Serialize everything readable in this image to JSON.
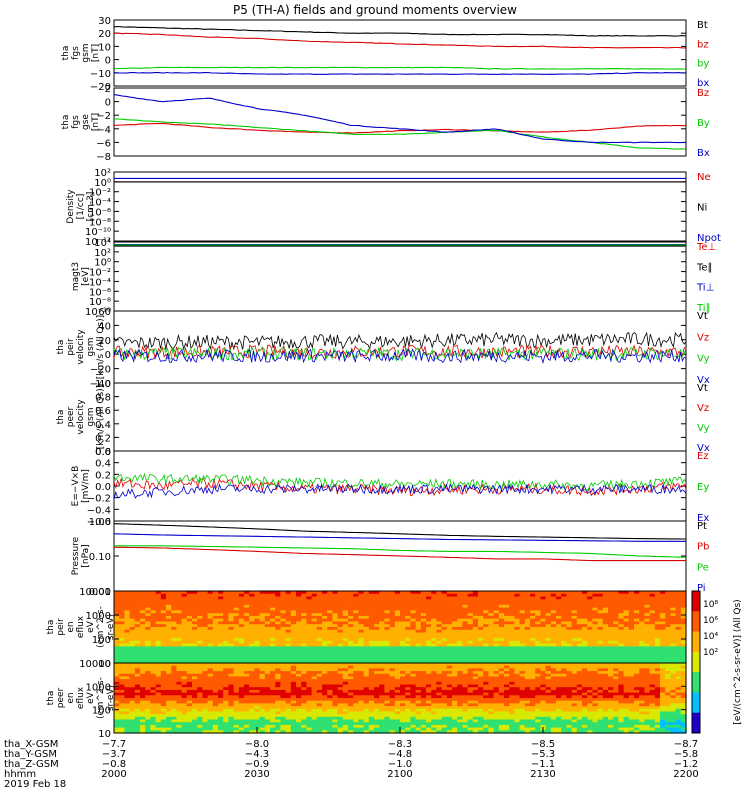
{
  "title": "P5 (TH-A) fields and ground moments overview",
  "chart_data": [
    {
      "type": "line",
      "panel": "fgs-gsm",
      "ylabel": [
        "tha",
        "fgs",
        "gsm",
        "[nT]"
      ],
      "ylim": [
        -20,
        30
      ],
      "yticks": [
        "30",
        "20",
        "10",
        "0",
        "−10",
        "−20"
      ],
      "series": [
        {
          "name": "Bt",
          "color": "#000000",
          "y": [
            25,
            24,
            23,
            22,
            21,
            20,
            20,
            19,
            19,
            19,
            18,
            18,
            18
          ]
        },
        {
          "name": "bz",
          "color": "#dd0000",
          "y": [
            20,
            19,
            17,
            16,
            14,
            13,
            12,
            11,
            10,
            10,
            9,
            9,
            9
          ]
        },
        {
          "name": "by",
          "color": "#00cc00",
          "y": [
            -7,
            -6,
            -6,
            -6,
            -6,
            -6,
            -6,
            -6,
            -7,
            -7,
            -7,
            -7,
            -7
          ]
        },
        {
          "name": "bx",
          "color": "#0000cc",
          "y": [
            -10,
            -10,
            -10,
            -11,
            -11,
            -11,
            -11,
            -11,
            -11,
            -11,
            -11,
            -10,
            -10
          ]
        }
      ]
    },
    {
      "type": "line",
      "panel": "fgs-gse",
      "ylabel": [
        "tha",
        "fgs",
        "gse",
        "[nT]"
      ],
      "ylim": [
        -8,
        2
      ],
      "yticks": [
        "2",
        "0",
        "−2",
        "−4",
        "−6",
        "−8"
      ],
      "series": [
        {
          "name": "Bz",
          "color": "#dd0000",
          "y": [
            -3.5,
            -3.2,
            -3.8,
            -4.2,
            -4.5,
            -4.6,
            -4.3,
            -4.1,
            -4.3,
            -4.5,
            -4.2,
            -3.6,
            -3.5
          ]
        },
        {
          "name": "By",
          "color": "#00cc00",
          "y": [
            -2.5,
            -3,
            -3.3,
            -3.8,
            -4.3,
            -4.8,
            -4.8,
            -4.5,
            -4.2,
            -5.2,
            -6,
            -6.8,
            -7
          ]
        },
        {
          "name": "Bx",
          "color": "#0000cc",
          "y": [
            1,
            0,
            0.5,
            -1,
            -2,
            -3.5,
            -4,
            -4.5,
            -4,
            -5.5,
            -6,
            -6,
            -6
          ]
        }
      ]
    },
    {
      "type": "line",
      "panel": "density",
      "ylabel": [
        "Density",
        "[1/cc]",
        "[cm-3]"
      ],
      "ylim": [
        1e-12,
        100
      ],
      "scale": "log",
      "yticks": [
        "10²",
        "10⁰",
        "10⁻²",
        "10⁻⁴",
        "10⁻⁶",
        "10⁻⁸",
        "10⁻¹⁰",
        "10⁻¹²"
      ],
      "series": [
        {
          "name": "Ne",
          "color": "#dd0000",
          "y": [
            1,
            1,
            1,
            1,
            1,
            1,
            1,
            1,
            1,
            1,
            1,
            1,
            1
          ]
        },
        {
          "name": "Ni",
          "color": "#000000",
          "y": [
            1,
            1,
            1,
            1,
            1,
            1,
            1,
            1,
            1,
            1,
            1,
            1,
            1
          ]
        },
        {
          "name": "Npot",
          "color": "#0000cc",
          "y": [
            5,
            5,
            5,
            5,
            5,
            5,
            5,
            5,
            5,
            5,
            5,
            5,
            5
          ]
        }
      ]
    },
    {
      "type": "line",
      "panel": "temperature",
      "ylabel": [
        "magt3",
        "[eV]"
      ],
      "ylim": [
        1e-10,
        10000
      ],
      "scale": "log",
      "yticks": [
        "10⁴",
        "10²",
        "10⁰",
        "10⁻²",
        "10⁻⁴",
        "10⁻⁶",
        "10⁻⁸",
        "10⁻¹⁰"
      ],
      "series": [
        {
          "name": "Te⊥",
          "color": "#dd0000",
          "y": [
            2000,
            2000,
            2000,
            2000,
            2000,
            2000,
            2000,
            2000,
            2000,
            2000,
            2000,
            2000,
            2000
          ]
        },
        {
          "name": "Te∥",
          "color": "#000000",
          "y": [
            1500,
            1500,
            1500,
            1500,
            1500,
            1500,
            1500,
            1500,
            1500,
            1500,
            1500,
            1500,
            1500
          ]
        },
        {
          "name": "Ti⊥",
          "color": "#0000cc",
          "y": [
            3000,
            3000,
            3000,
            3000,
            3000,
            3000,
            3000,
            3000,
            3000,
            3000,
            3000,
            3000,
            3000
          ]
        },
        {
          "name": "Ti∥",
          "color": "#00cc00",
          "y": [
            2500,
            2500,
            2500,
            2500,
            2500,
            2500,
            2500,
            2500,
            2500,
            2500,
            2500,
            2500,
            2500
          ]
        }
      ]
    },
    {
      "type": "line",
      "panel": "peir-velocity",
      "ylabel": [
        "tha",
        "peir",
        "velocity",
        "gsm",
        "[km/s (All Qs)]"
      ],
      "ylim": [
        -40,
        60
      ],
      "yticks": [
        "60",
        "40",
        "20",
        "0",
        "−20",
        "−40"
      ],
      "series": [
        {
          "name": "Vt",
          "color": "#000000",
          "y": [
            15,
            16,
            17,
            16,
            18,
            17,
            18,
            19,
            20,
            19,
            20,
            21,
            20
          ]
        },
        {
          "name": "Vz",
          "color": "#dd0000",
          "y": [
            2,
            3,
            3,
            4,
            3,
            3,
            4,
            4,
            3,
            4,
            4,
            3,
            3
          ]
        },
        {
          "name": "Vy",
          "color": "#00cc00",
          "y": [
            0,
            1,
            0,
            1,
            0,
            1,
            0,
            1,
            0,
            1,
            0,
            1,
            0
          ]
        },
        {
          "name": "Vx",
          "color": "#0000cc",
          "y": [
            -2,
            -3,
            -2,
            -3,
            -2,
            -3,
            -2,
            -3,
            -2,
            -3,
            -2,
            -3,
            -2
          ]
        }
      ]
    },
    {
      "type": "line",
      "panel": "peer-velocity",
      "ylabel": [
        "tha",
        "peer",
        "velocity",
        "gsm",
        "[km/s (All Qs)]"
      ],
      "ylim": [
        0,
        1
      ],
      "yticks": [
        "1.0",
        "0.8",
        "0.6",
        "0.4",
        "0.2",
        "0.0"
      ],
      "series": [
        {
          "name": "Vt",
          "color": "#000000",
          "y": []
        },
        {
          "name": "Vz",
          "color": "#dd0000",
          "y": []
        },
        {
          "name": "Vy",
          "color": "#00cc00",
          "y": []
        },
        {
          "name": "Vx",
          "color": "#0000cc",
          "y": []
        }
      ]
    },
    {
      "type": "line",
      "panel": "e-field",
      "ylabel": [
        "E=−V×B",
        "[mV/m]"
      ],
      "ylim": [
        -0.6,
        0.6
      ],
      "yticks": [
        "0.6",
        "0.4",
        "0.2",
        "0.0",
        "−0.2",
        "−0.4",
        "−0.6"
      ],
      "series": [
        {
          "name": "Ez",
          "color": "#dd0000",
          "y": [
            0.05,
            0.0,
            0.05,
            0.0,
            -0.05,
            -0.05,
            -0.08,
            -0.06,
            -0.05,
            -0.05,
            -0.08,
            -0.04,
            0.0
          ]
        },
        {
          "name": "Ey",
          "color": "#00cc00",
          "y": [
            0.15,
            0.12,
            0.12,
            0.1,
            0.06,
            0.05,
            0.03,
            0.04,
            0.02,
            0.03,
            0.0,
            0.05,
            0.08
          ]
        },
        {
          "name": "Ex",
          "color": "#0000cc",
          "y": [
            -0.15,
            -0.1,
            -0.05,
            -0.05,
            -0.05,
            -0.05,
            -0.05,
            -0.05,
            -0.05,
            -0.05,
            -0.05,
            -0.05,
            -0.05
          ]
        }
      ]
    },
    {
      "type": "line",
      "panel": "pressure",
      "ylabel": [
        "Pressure",
        "[nPa]"
      ],
      "ylim": [
        0.01,
        1.2
      ],
      "scale": "log",
      "yticks": [
        "1.00",
        "0.10",
        "0.01"
      ],
      "series": [
        {
          "name": "Pt",
          "color": "#000000",
          "y": [
            1.0,
            0.9,
            0.8,
            0.7,
            0.6,
            0.55,
            0.5,
            0.45,
            0.42,
            0.4,
            0.38,
            0.36,
            0.35
          ]
        },
        {
          "name": "Pb",
          "color": "#dd0000",
          "y": [
            0.2,
            0.19,
            0.17,
            0.15,
            0.13,
            0.12,
            0.11,
            0.1,
            0.09,
            0.09,
            0.08,
            0.08,
            0.08
          ]
        },
        {
          "name": "Pe",
          "color": "#00cc00",
          "y": [
            0.22,
            0.22,
            0.21,
            0.2,
            0.19,
            0.18,
            0.16,
            0.15,
            0.15,
            0.14,
            0.13,
            0.11,
            0.1
          ]
        },
        {
          "name": "Pi",
          "color": "#0000cc",
          "y": [
            0.5,
            0.46,
            0.44,
            0.42,
            0.4,
            0.38,
            0.36,
            0.34,
            0.33,
            0.32,
            0.31,
            0.3,
            0.3
          ]
        }
      ]
    },
    {
      "type": "heatmap",
      "panel": "peir-spectrogram",
      "ylabel": [
        "tha",
        "peir",
        "en",
        "eflux",
        "eV",
        "(cm^2-s-",
        "sr-eV)"
      ],
      "ylim": [
        5,
        25000
      ],
      "scale": "log",
      "yticks": [
        "10000",
        "1000",
        "100",
        "10"
      ],
      "colorbar": {
        "label": "[eV/(cm^2-s-sr-eV)] (All Qs)",
        "ticks": [
          "10⁸",
          "10⁶",
          "10⁴",
          "10²"
        ]
      }
    },
    {
      "type": "heatmap",
      "panel": "peer-spectrogram",
      "ylabel": [
        "tha",
        "peer",
        "en",
        "eflux",
        "eV",
        "(cm^2-s-",
        "sr-eV)"
      ],
      "ylim": [
        5,
        25000
      ],
      "scale": "log",
      "yticks": [
        "10000",
        "1000",
        "100",
        "10"
      ],
      "colorbar": {
        "label": "[eV/(cm^2-s-sr-eV)] (All Qs)",
        "ticks": [
          "10⁸",
          "10⁶",
          "10⁴",
          "10²"
        ]
      }
    }
  ],
  "xaxis": {
    "rows": [
      {
        "label": "tha_X-GSM",
        "values": [
          "−7.7",
          "−8.0",
          "−8.3",
          "−8.5",
          "−8.7"
        ]
      },
      {
        "label": "tha_Y-GSM",
        "values": [
          "−3.7",
          "−4.3",
          "−4.8",
          "−5.3",
          "−5.8"
        ]
      },
      {
        "label": "tha_Z-GSM",
        "values": [
          "−0.8",
          "−0.9",
          "−1.0",
          "−1.1",
          "−1.2"
        ]
      },
      {
        "label": "hhmm",
        "values": [
          "2000",
          "2030",
          "2100",
          "2130",
          "2200"
        ]
      }
    ],
    "date": "2019 Feb 18"
  }
}
